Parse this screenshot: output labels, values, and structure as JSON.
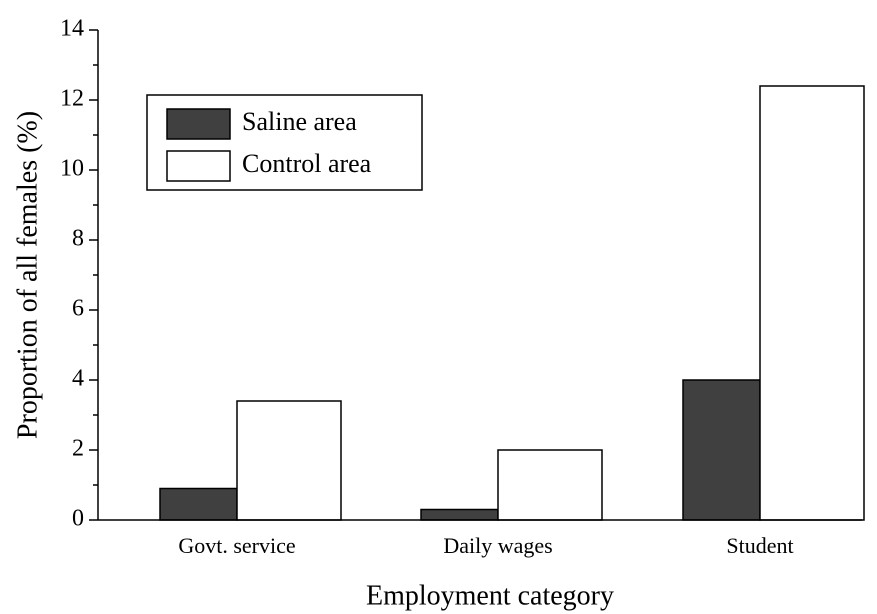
{
  "chart_data": {
    "type": "bar",
    "xlabel": "Employment category",
    "ylabel": "Proportion of all females (%)",
    "categories": [
      "Govt. service",
      "Daily wages",
      "Student"
    ],
    "series": [
      {
        "name": "Saline area",
        "color": "#404040",
        "values": [
          0.9,
          0.3,
          4.0
        ]
      },
      {
        "name": "Control area",
        "color": "#ffffff",
        "values": [
          3.4,
          2.0,
          12.4
        ]
      }
    ],
    "ylim": [
      0,
      14
    ],
    "yticks": [
      0,
      2,
      4,
      6,
      8,
      10,
      12,
      14
    ],
    "legend": "upper left"
  }
}
